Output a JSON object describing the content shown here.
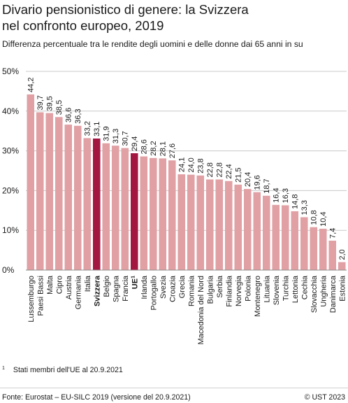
{
  "header": {
    "title_line1": "Divario pensionistico di genere: la Svizzera",
    "title_line2": "nel confronto europeo, 2019",
    "subtitle": "Differenza percentuale tra le rendite degli uomini e delle donne dai 65 anni in su"
  },
  "footer": {
    "footnote_marker": "1",
    "footnote_text": "Stati membri dell'UE al 20.9.2021",
    "source": "Fonte: Eurostat – EU-SILC 2019 (versione del 20.9.2021)",
    "copyright": "© UST 2023"
  },
  "colors": {
    "bar": "#e0a0a4",
    "highlight": "#a3163f",
    "grid": "#c8c8c8",
    "text": "#1a1a1a"
  },
  "chart_data": {
    "type": "bar",
    "categories": [
      "Lussemburgo",
      "Paesi Bassi",
      "Malta",
      "Cipro",
      "Austria",
      "Germania",
      "Italia",
      "Svizzera",
      "Belgio",
      "Spagna",
      "Francia",
      "UE",
      "Irlanda",
      "Portogallo",
      "Svezia",
      "Croazia",
      "Grecia",
      "Romania",
      "Macedonia del Nord",
      "Bulgaria",
      "Serbia",
      "Finlandia",
      "Norvegia",
      "Polonia",
      "Montenegro",
      "Lituania",
      "Slovenia",
      "Turchia",
      "Lettonia",
      "Cechia",
      "Slovacchia",
      "Ungheria",
      "Danimarca",
      "Estonia"
    ],
    "category_superscripts": {
      "UE": "1"
    },
    "values": [
      44.2,
      39.7,
      39.5,
      38.5,
      36.6,
      36.3,
      33.2,
      33.1,
      31.9,
      31.3,
      30.7,
      29.4,
      28.6,
      28.2,
      28.1,
      27.6,
      24.1,
      24.0,
      23.8,
      22.8,
      22.8,
      22.4,
      21.5,
      20.4,
      19.6,
      18.7,
      16.4,
      16.3,
      14.8,
      13.3,
      10.8,
      10.4,
      7.4,
      2.0
    ],
    "value_labels": [
      "44,2",
      "39,7",
      "39,5",
      "38,5",
      "36,6",
      "36,3",
      "33,2",
      "33,1",
      "31,9",
      "31,3",
      "30,7",
      "29,4",
      "28,6",
      "28,2",
      "28,1",
      "27,6",
      "24,1",
      "24,0",
      "23,8",
      "22,8",
      "22,8",
      "22,4",
      "21,5",
      "20,4",
      "19,6",
      "18,7",
      "16,4",
      "16,3",
      "14,8",
      "13,3",
      "10,8",
      "10,4",
      "7,4",
      "2,0"
    ],
    "highlighted": [
      "Svizzera",
      "UE"
    ],
    "ylim": [
      0,
      50
    ],
    "yticks": [
      0,
      10,
      20,
      30,
      40,
      50
    ],
    "ytick_labels": [
      "0%",
      "10%",
      "20%",
      "30%",
      "40%",
      "50%"
    ],
    "grid": true,
    "xlabel": "",
    "ylabel": ""
  }
}
